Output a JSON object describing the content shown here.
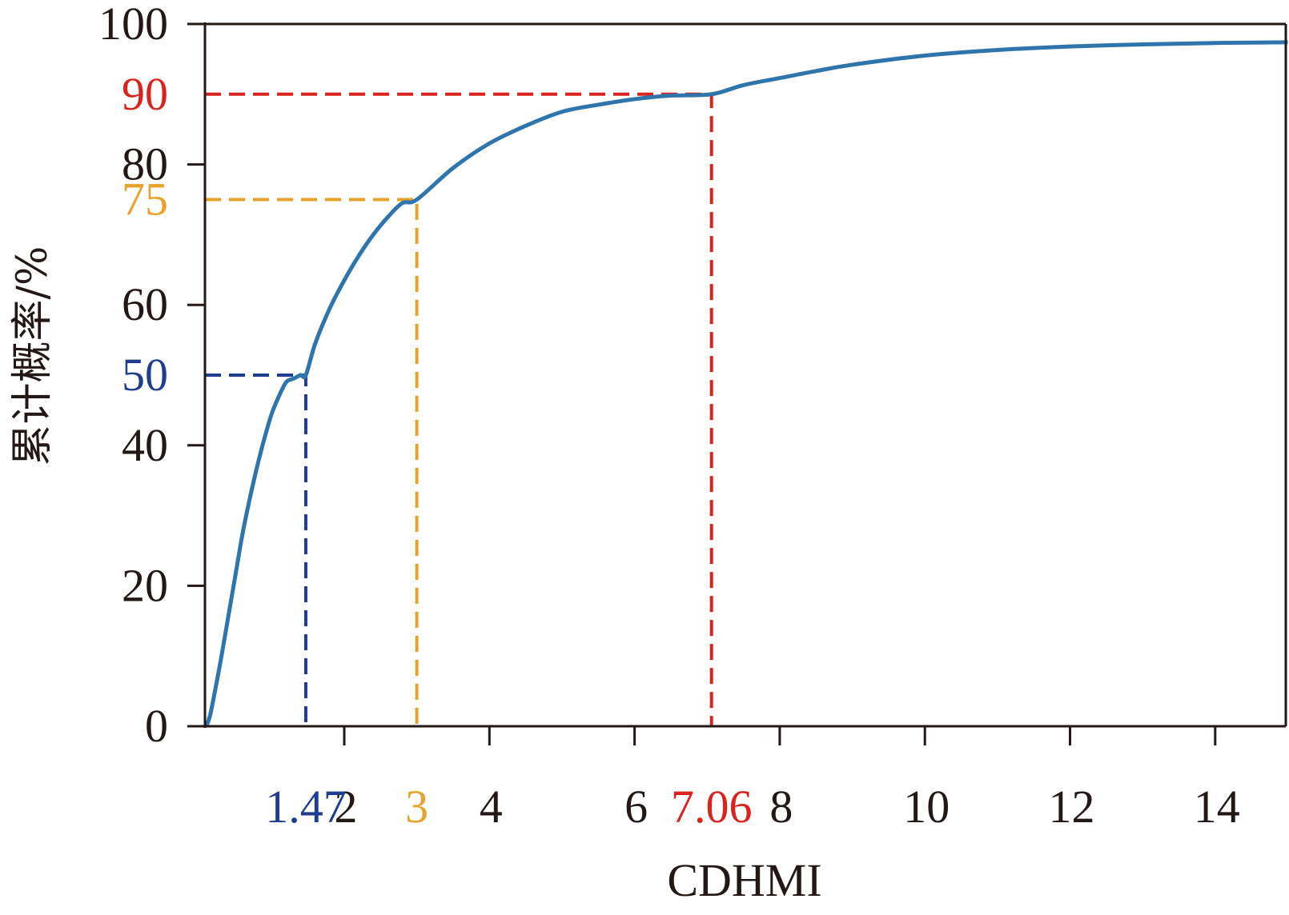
{
  "chart_data": {
    "type": "line",
    "title": "",
    "xlabel": "CDHMI",
    "ylabel": "累计概率/%",
    "xlim": [
      0.05,
      15
    ],
    "ylim": [
      0,
      100
    ],
    "grid": false,
    "legend": "none",
    "colors": {
      "curve": "#2e74ad",
      "axis": "#231815",
      "blue": "#1f3e8f",
      "orange": "#e8a229",
      "red": "#d8231f"
    },
    "y_ticks": [
      {
        "value": 0,
        "label": "0"
      },
      {
        "value": 20,
        "label": "20"
      },
      {
        "value": 40,
        "label": "40"
      },
      {
        "value": 60,
        "label": "60"
      },
      {
        "value": 80,
        "label": "80"
      },
      {
        "value": 100,
        "label": "100"
      }
    ],
    "x_ticks": [
      {
        "value": 2,
        "label": "2"
      },
      {
        "value": 4,
        "label": "4"
      },
      {
        "value": 6,
        "label": "6"
      },
      {
        "value": 8,
        "label": "8"
      },
      {
        "value": 10,
        "label": "10"
      },
      {
        "value": 12,
        "label": "12"
      },
      {
        "value": 14,
        "label": "14"
      }
    ],
    "series": [
      {
        "x": [
          0.1,
          0.15,
          0.2,
          0.3,
          0.4,
          0.5,
          0.6,
          0.7,
          0.8,
          0.9,
          1.0,
          1.1,
          1.2,
          1.3,
          1.4,
          1.47,
          1.6,
          1.8,
          2.0,
          2.2,
          2.4,
          2.6,
          2.8,
          3.0,
          3.5,
          4.0,
          4.5,
          5.0,
          5.5,
          6.0,
          6.5,
          7.06,
          7.5,
          8.0,
          8.5,
          9.0,
          10.0,
          11.0,
          12.0,
          13.0,
          14.0,
          15.0
        ],
        "y": [
          0,
          1.5,
          4,
          9.5,
          15.5,
          21.5,
          27.5,
          32.5,
          37,
          41,
          44.5,
          47,
          49,
          49.5,
          50,
          50,
          54.5,
          59.5,
          63.5,
          67,
          70,
          72.5,
          74.5,
          75,
          79.5,
          83,
          85.5,
          87.5,
          88.5,
          89.3,
          89.8,
          90,
          91.3,
          92.3,
          93.3,
          94.2,
          95.5,
          96.3,
          96.8,
          97.1,
          97.3,
          97.4
        ]
      }
    ],
    "reference_lines": [
      {
        "name": "p50",
        "x": 1.47,
        "y": 50,
        "x_label": "1.47",
        "y_label": "50",
        "color": "#1f3e8f"
      },
      {
        "name": "p75",
        "x": 3,
        "y": 75,
        "x_label": "3",
        "y_label": "75",
        "color": "#e8a229"
      },
      {
        "name": "p90",
        "x": 7.06,
        "y": 90,
        "x_label": "7.06",
        "y_label": "90",
        "color": "#d8231f"
      }
    ]
  }
}
